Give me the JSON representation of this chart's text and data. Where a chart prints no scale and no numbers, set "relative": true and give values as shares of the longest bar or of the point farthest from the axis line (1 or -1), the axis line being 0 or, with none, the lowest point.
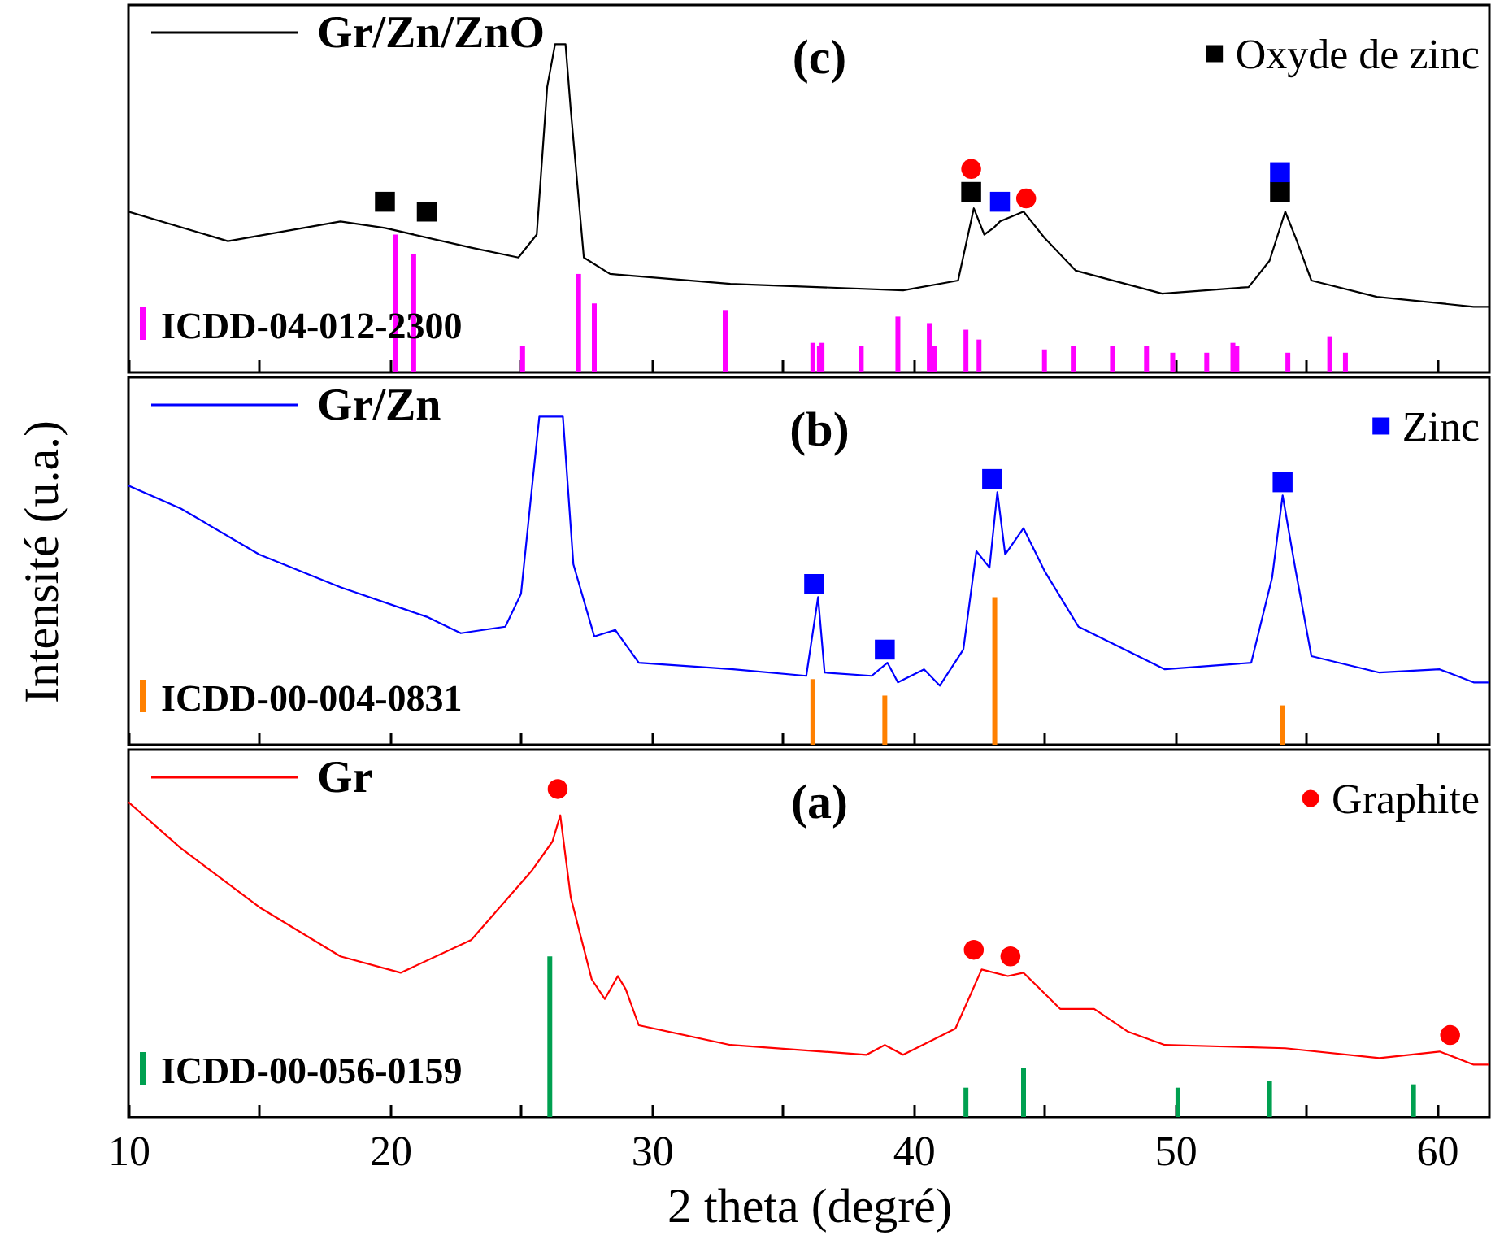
{
  "chart_data": [
    {
      "type": "line",
      "title": "(c)",
      "relative": true,
      "xlim": [
        10,
        62
      ],
      "xticks": [
        10,
        {
          "value": 15,
          "label": null
        },
        20,
        {
          "value": 25,
          "label": null
        },
        30,
        {
          "value": 35,
          "label": null
        },
        40,
        {
          "value": 45,
          "label": null
        },
        50,
        {
          "value": 55,
          "label": null
        },
        60
      ],
      "tick_labels": false,
      "legend": "top",
      "series": [
        {
          "name": "Gr/Zn/ZnO",
          "color": "#000000",
          "x": [
            10,
            13.8,
            18.1,
            19.8,
            23.1,
            24.9,
            25.6,
            26.0,
            26.3,
            26.7,
            26.9,
            27.4,
            28.4,
            33.0,
            39.6,
            41.7,
            42.3,
            42.7,
            43.05,
            43.3,
            44.2,
            45.0,
            46.2,
            49.5,
            52.8,
            53.6,
            54.2,
            54.6,
            55.2,
            57.7,
            61.4,
            62
          ],
          "values": [
            0.49,
            0.4,
            0.46,
            0.44,
            0.38,
            0.35,
            0.42,
            0.87,
            1,
            1,
            0.8,
            0.35,
            0.3,
            0.27,
            0.25,
            0.28,
            0.5,
            0.42,
            0.44,
            0.46,
            0.49,
            0.41,
            0.31,
            0.24,
            0.26,
            0.34,
            0.49,
            0.41,
            0.28,
            0.23,
            0.2,
            0.2
          ]
        },
        {
          "name": "ICDD-04-012-2300",
          "type": "bar",
          "color": "#ff00ff",
          "x": [
            20.2,
            20.9,
            25.06,
            27.2,
            27.8,
            32.8,
            36.15,
            36.4,
            36.5,
            38.0,
            39.4,
            40.6,
            40.8,
            42.0,
            42.5,
            45.0,
            46.1,
            47.6,
            48.9,
            49.9,
            51.2,
            52.2,
            52.35,
            54.3,
            55.9,
            56.5
          ],
          "values": [
            0.42,
            0.36,
            0.08,
            0.3,
            0.21,
            0.19,
            0.09,
            0.08,
            0.09,
            0.08,
            0.17,
            0.15,
            0.08,
            0.13,
            0.1,
            0.07,
            0.08,
            0.08,
            0.08,
            0.06,
            0.06,
            0.09,
            0.08,
            0.06,
            0.11,
            0.06
          ]
        },
        {
          "name": "Oxyde de zinc",
          "type": "scatter",
          "marker": "square",
          "color": "#000000",
          "x": [
            19.8,
            21.4,
            42.2,
            54.0
          ],
          "values": [
            0.52,
            0.49,
            0.55,
            0.55
          ]
        },
        {
          "type": "scatter",
          "marker": "square",
          "color": "#0000ff",
          "x": [
            43.3,
            54.0
          ],
          "values": [
            0.52,
            0.61
          ]
        },
        {
          "type": "scatter",
          "marker": "circle",
          "color": "#ff0000",
          "x": [
            42.2,
            44.3
          ],
          "values": [
            0.62,
            0.53
          ]
        }
      ]
    },
    {
      "type": "line",
      "title": "(b)",
      "ylabel": "Intensité (u.a.)",
      "relative": true,
      "xlim": [
        10,
        62
      ],
      "xticks": [
        10,
        {
          "value": 15,
          "label": null
        },
        20,
        {
          "value": 25,
          "label": null
        },
        30,
        {
          "value": 35,
          "label": null
        },
        40,
        {
          "value": 45,
          "label": null
        },
        50,
        {
          "value": 55,
          "label": null
        },
        60
      ],
      "tick_labels": false,
      "legend": "top",
      "series": [
        {
          "name": "Gr/Zn",
          "color": "#0000ff",
          "x": [
            10,
            12.0,
            15.0,
            18.1,
            21.4,
            22.7,
            24.4,
            25.0,
            25.4,
            25.7,
            26.6,
            27.0,
            27.8,
            28.6,
            29.5,
            33.1,
            35.9,
            36.35,
            36.6,
            38.4,
            39.0,
            39.4,
            40.4,
            41.0,
            41.9,
            42.4,
            42.9,
            43.2,
            43.5,
            44.2,
            45.0,
            46.3,
            49.6,
            52.9,
            53.7,
            54.1,
            54.6,
            55.2,
            57.8,
            60.1,
            61.4,
            62
          ],
          "values": [
            0.79,
            0.72,
            0.58,
            0.48,
            0.39,
            0.34,
            0.36,
            0.46,
            0.77,
            1,
            1,
            0.55,
            0.33,
            0.35,
            0.25,
            0.23,
            0.21,
            0.45,
            0.22,
            0.21,
            0.25,
            0.19,
            0.23,
            0.18,
            0.29,
            0.59,
            0.54,
            0.77,
            0.58,
            0.66,
            0.53,
            0.36,
            0.23,
            0.25,
            0.51,
            0.76,
            0.53,
            0.27,
            0.22,
            0.23,
            0.19,
            0.19
          ]
        },
        {
          "name": "ICDD-00-004-0831",
          "type": "bar",
          "color": "#ff8000",
          "x": [
            36.15,
            38.9,
            43.1,
            54.1
          ],
          "values": [
            0.2,
            0.15,
            0.45,
            0.12
          ]
        },
        {
          "name": "Zinc",
          "type": "scatter",
          "marker": "square",
          "color": "#0000ff",
          "x": [
            36.2,
            38.9,
            43.0,
            54.1
          ],
          "values": [
            0.49,
            0.29,
            0.81,
            0.8
          ]
        }
      ]
    },
    {
      "type": "line",
      "title": "(a)",
      "xlabel": "2 theta (degré)",
      "relative": true,
      "xlim": [
        10,
        62
      ],
      "xticks": [
        10,
        {
          "value": 15,
          "label": null
        },
        20,
        {
          "value": 25,
          "label": null
        },
        30,
        {
          "value": 35,
          "label": null
        },
        40,
        {
          "value": 45,
          "label": null
        },
        50,
        {
          "value": 55,
          "label": null
        },
        60
      ],
      "tick_labels": "x",
      "legend": "top",
      "series": [
        {
          "name": "Gr",
          "color": "#ff0000",
          "x": [
            10,
            12.0,
            15.0,
            18.1,
            20.4,
            23.1,
            25.4,
            26.2,
            26.5,
            26.9,
            27.7,
            28.2,
            28.7,
            29.0,
            29.5,
            33.0,
            38.2,
            38.9,
            39.6,
            41.6,
            42.6,
            43.6,
            44.2,
            45.6,
            46.9,
            48.2,
            49.6,
            54.2,
            57.8,
            60.1,
            61.4,
            62
          ],
          "values": [
            0.96,
            0.82,
            0.64,
            0.49,
            0.44,
            0.54,
            0.75,
            0.84,
            0.92,
            0.67,
            0.42,
            0.36,
            0.43,
            0.39,
            0.28,
            0.22,
            0.19,
            0.22,
            0.19,
            0.27,
            0.45,
            0.43,
            0.44,
            0.33,
            0.33,
            0.26,
            0.22,
            0.21,
            0.18,
            0.2,
            0.16,
            0.16
          ]
        },
        {
          "name": "ICDD-00-056-0159",
          "type": "bar",
          "color": "#00a050",
          "x": [
            26.1,
            42.0,
            44.2,
            50.1,
            53.6,
            59.1
          ],
          "values": [
            0.49,
            0.09,
            0.15,
            0.09,
            0.11,
            0.1
          ]
        },
        {
          "name": "Graphite",
          "type": "scatter",
          "marker": "circle",
          "color": "#ff0000",
          "x": [
            26.4,
            42.3,
            43.7,
            60.5
          ],
          "values": [
            1,
            0.51,
            0.49,
            0.25
          ]
        }
      ]
    }
  ]
}
